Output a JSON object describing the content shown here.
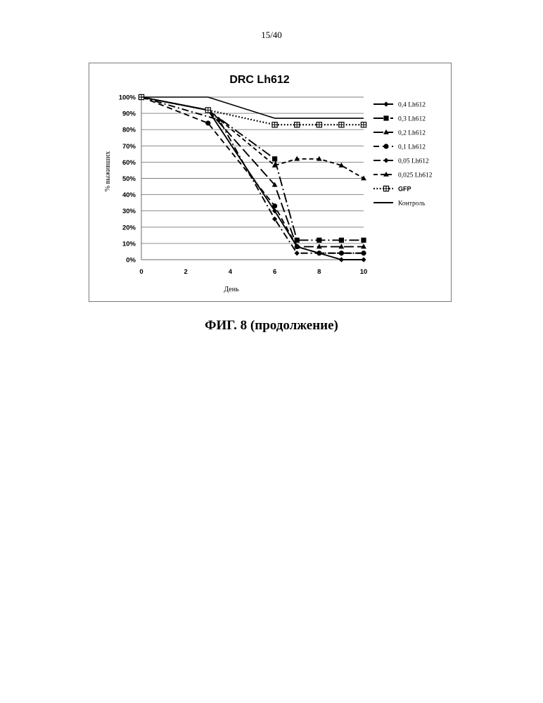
{
  "page": {
    "number": "15/40",
    "caption": "ФИГ. 8 (продолжение)"
  },
  "chart_data": {
    "type": "line",
    "title": "DRC Lh612",
    "xlabel": "День",
    "ylabel": "% выживших",
    "xlim": [
      0,
      10
    ],
    "ylim": [
      0,
      100
    ],
    "x_ticks": [
      "0",
      "2",
      "4",
      "6",
      "8",
      "10"
    ],
    "y_ticks": [
      "0%",
      "10%",
      "20%",
      "30%",
      "40%",
      "50%",
      "60%",
      "70%",
      "80%",
      "90%",
      "100%"
    ],
    "grid": "horizontal",
    "legend_position": "right",
    "series": [
      {
        "name": "0,4 Lh612",
        "marker": "diamond",
        "dash": "solid-short",
        "x": [
          0,
          3,
          6,
          7,
          8,
          9,
          10
        ],
        "y": [
          100,
          92,
          30,
          8,
          4,
          0,
          0
        ]
      },
      {
        "name": "0,3 Lh612",
        "marker": "square",
        "dash": "long-dash-dot",
        "x": [
          0,
          3,
          6,
          7,
          8,
          9,
          10
        ],
        "y": [
          100,
          92,
          62,
          12,
          12,
          12,
          12
        ]
      },
      {
        "name": "0,2 Lh612",
        "marker": "triangle",
        "dash": "long-dash",
        "x": [
          0,
          3,
          6,
          7,
          8,
          9,
          10
        ],
        "y": [
          100,
          92,
          46,
          8,
          8,
          8,
          8
        ]
      },
      {
        "name": "0,1 Lh612",
        "marker": "circle",
        "dash": "dash",
        "x": [
          0,
          3,
          6,
          7,
          8,
          9,
          10
        ],
        "y": [
          100,
          84,
          33,
          8,
          4,
          4,
          4
        ]
      },
      {
        "name": "0,05 Lh612",
        "marker": "diamond",
        "dash": "dash-dot",
        "x": [
          0,
          3.5,
          6,
          7,
          8,
          9,
          10
        ],
        "y": [
          100,
          86,
          25,
          4,
          4,
          4,
          4
        ]
      },
      {
        "name": "0,025 Lh612",
        "marker": "triangle",
        "dash": "short-dash",
        "x": [
          0,
          3,
          6,
          7,
          8,
          9,
          10
        ],
        "y": [
          100,
          92,
          58,
          62,
          62,
          58,
          50
        ]
      },
      {
        "name": "GFP",
        "marker": "cross-square",
        "dash": "dot",
        "x": [
          0,
          3,
          6,
          7,
          8,
          9,
          10
        ],
        "y": [
          100,
          92,
          83,
          83,
          83,
          83,
          83
        ]
      },
      {
        "name": "Контроль",
        "marker": "none",
        "dash": "solid",
        "x": [
          0,
          3,
          6,
          7,
          8,
          9,
          10
        ],
        "y": [
          100,
          100,
          87,
          87,
          87,
          87,
          87
        ]
      }
    ]
  }
}
